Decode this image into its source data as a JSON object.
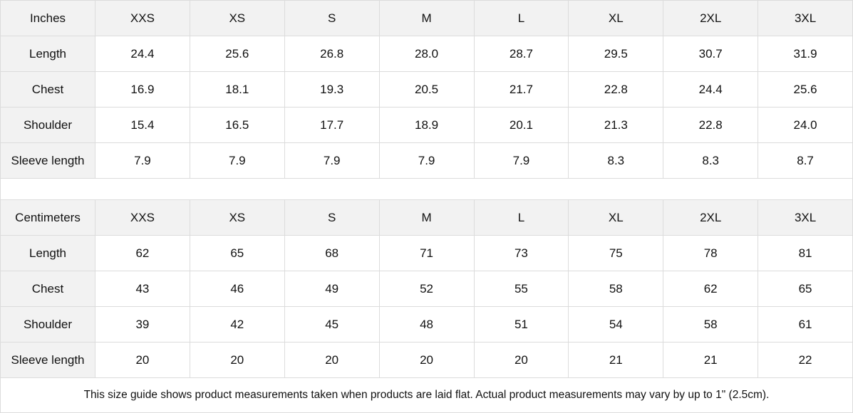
{
  "inches": {
    "header": [
      "Inches",
      "XXS",
      "XS",
      "S",
      "M",
      "L",
      "XL",
      "2XL",
      "3XL"
    ],
    "rows": [
      [
        "Length",
        "24.4",
        "25.6",
        "26.8",
        "28.0",
        "28.7",
        "29.5",
        "30.7",
        "31.9"
      ],
      [
        "Chest",
        "16.9",
        "18.1",
        "19.3",
        "20.5",
        "21.7",
        "22.8",
        "24.4",
        "25.6"
      ],
      [
        "Shoulder",
        "15.4",
        "16.5",
        "17.7",
        "18.9",
        "20.1",
        "21.3",
        "22.8",
        "24.0"
      ],
      [
        "Sleeve length",
        "7.9",
        "7.9",
        "7.9",
        "7.9",
        "7.9",
        "8.3",
        "8.3",
        "8.7"
      ]
    ]
  },
  "centimeters": {
    "header": [
      "Centimeters",
      "XXS",
      "XS",
      "S",
      "M",
      "L",
      "XL",
      "2XL",
      "3XL"
    ],
    "rows": [
      [
        "Length",
        "62",
        "65",
        "68",
        "71",
        "73",
        "75",
        "78",
        "81"
      ],
      [
        "Chest",
        "43",
        "46",
        "49",
        "52",
        "55",
        "58",
        "62",
        "65"
      ],
      [
        "Shoulder",
        "39",
        "42",
        "45",
        "48",
        "51",
        "54",
        "58",
        "61"
      ],
      [
        "Sleeve length",
        "20",
        "20",
        "20",
        "20",
        "20",
        "21",
        "21",
        "22"
      ]
    ]
  },
  "note": "This size guide shows product measurements taken when products are laid flat.  Actual product measurements may vary by up to 1\" (2.5cm).",
  "colors": {
    "header_bg": "#f2f2f2",
    "border": "#dcdcdc"
  }
}
